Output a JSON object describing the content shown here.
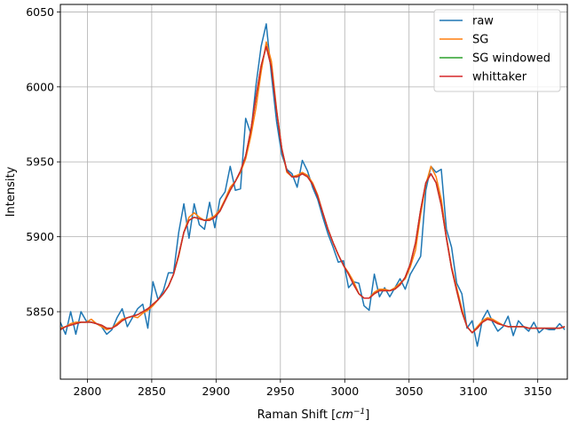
{
  "chart_data": {
    "type": "line",
    "xlabel": "Raman Shift [",
    "xlabel_unit": "cm",
    "xlabel_unit_exp": "−1",
    "xlabel_close": "]",
    "ylabel": "Intensity",
    "xlim": [
      2779,
      3173
    ],
    "ylim": [
      5805,
      6055
    ],
    "xticks": [
      2800,
      2850,
      2900,
      2950,
      3000,
      3050,
      3100,
      3150
    ],
    "yticks": [
      5850,
      5900,
      5950,
      6000,
      6050
    ],
    "grid": true,
    "legend_position": "top-right",
    "x": [
      2779,
      2783,
      2787,
      2791,
      2795,
      2799,
      2803,
      2807,
      2811,
      2815,
      2819,
      2823,
      2827,
      2831,
      2835,
      2839,
      2843,
      2847,
      2851,
      2855,
      2859,
      2863,
      2867,
      2871,
      2875,
      2879,
      2883,
      2887,
      2891,
      2895,
      2899,
      2903,
      2907,
      2911,
      2915,
      2919,
      2923,
      2927,
      2931,
      2935,
      2939,
      2943,
      2947,
      2951,
      2955,
      2959,
      2963,
      2967,
      2971,
      2975,
      2979,
      2983,
      2987,
      2991,
      2995,
      2999,
      3003,
      3007,
      3011,
      3015,
      3019,
      3023,
      3027,
      3031,
      3035,
      3039,
      3043,
      3047,
      3051,
      3055,
      3059,
      3063,
      3067,
      3071,
      3075,
      3079,
      3083,
      3087,
      3091,
      3095,
      3099,
      3103,
      3107,
      3111,
      3115,
      3119,
      3123,
      3127,
      3131,
      3135,
      3139,
      3143,
      3147,
      3151,
      3155,
      3159,
      3163,
      3167,
      3171
    ],
    "series": [
      {
        "name": "raw",
        "color": "#1f77b4",
        "values": [
          5843,
          5835,
          5850,
          5835,
          5850,
          5844,
          5843,
          5842,
          5840,
          5835,
          5838,
          5846,
          5852,
          5840,
          5846,
          5852,
          5855,
          5839,
          5870,
          5858,
          5864,
          5876,
          5876,
          5903,
          5922,
          5899,
          5922,
          5908,
          5905,
          5923,
          5906,
          5925,
          5930,
          5947,
          5931,
          5932,
          5979,
          5969,
          6001,
          6027,
          6042,
          6008,
          5977,
          5955,
          5945,
          5942,
          5933,
          5951,
          5944,
          5933,
          5925,
          5913,
          5902,
          5893,
          5883,
          5884,
          5866,
          5870,
          5869,
          5854,
          5851,
          5875,
          5860,
          5866,
          5860,
          5866,
          5872,
          5865,
          5875,
          5881,
          5887,
          5931,
          5947,
          5943,
          5945,
          5905,
          5893,
          5869,
          5862,
          5839,
          5844,
          5827,
          5845,
          5851,
          5843,
          5837,
          5840,
          5847,
          5834,
          5844,
          5840,
          5837,
          5843,
          5836,
          5839,
          5838,
          5838,
          5842,
          5838
        ]
      },
      {
        "name": "SG",
        "color": "#ff7f0e",
        "values": [
          5839,
          5840,
          5842,
          5843,
          5843,
          5843,
          5845,
          5842,
          5840,
          5838,
          5839,
          5842,
          5845,
          5846,
          5847,
          5846,
          5849,
          5851,
          5854,
          5858,
          5862,
          5867,
          5875,
          5887,
          5903,
          5913,
          5916,
          5913,
          5911,
          5912,
          5914,
          5918,
          5925,
          5933,
          5937,
          5943,
          5952,
          5967,
          5986,
          6010,
          6030,
          6017,
          5985,
          5959,
          5943,
          5940,
          5941,
          5943,
          5941,
          5936,
          5928,
          5916,
          5905,
          5896,
          5888,
          5881,
          5876,
          5870,
          5862,
          5859,
          5859,
          5863,
          5865,
          5865,
          5864,
          5866,
          5869,
          5872,
          5880,
          5891,
          5915,
          5935,
          5947,
          5940,
          5925,
          5900,
          5880,
          5866,
          5852,
          5840,
          5836,
          5840,
          5844,
          5846,
          5845,
          5843,
          5841,
          5840,
          5840,
          5840,
          5840,
          5839,
          5839,
          5839,
          5839,
          5839,
          5839,
          5839,
          5840
        ]
      },
      {
        "name": "SG windowed",
        "color": "#2ca02c",
        "values": [
          5838,
          5840,
          5841,
          5842,
          5843,
          5843,
          5843,
          5842,
          5841,
          5839,
          5839,
          5841,
          5844,
          5846,
          5847,
          5848,
          5850,
          5852,
          5855,
          5858,
          5862,
          5867,
          5875,
          5888,
          5903,
          5911,
          5913,
          5912,
          5911,
          5911,
          5913,
          5917,
          5924,
          5931,
          5937,
          5944,
          5954,
          5971,
          5993,
          6014,
          6027,
          6013,
          5984,
          5959,
          5944,
          5940,
          5940,
          5942,
          5940,
          5935,
          5927,
          5916,
          5905,
          5896,
          5888,
          5881,
          5875,
          5868,
          5862,
          5859,
          5859,
          5862,
          5864,
          5864,
          5864,
          5865,
          5868,
          5873,
          5882,
          5896,
          5918,
          5936,
          5942,
          5936,
          5921,
          5899,
          5879,
          5864,
          5850,
          5840,
          5836,
          5839,
          5843,
          5845,
          5844,
          5842,
          5841,
          5840,
          5840,
          5840,
          5840,
          5839,
          5839,
          5839,
          5839,
          5839,
          5839,
          5839,
          5840
        ]
      },
      {
        "name": "whittaker",
        "color": "#d62728",
        "values": [
          5838,
          5840,
          5841,
          5842,
          5843,
          5843,
          5843,
          5842,
          5841,
          5839,
          5839,
          5841,
          5844,
          5846,
          5847,
          5848,
          5850,
          5852,
          5855,
          5858,
          5862,
          5867,
          5875,
          5888,
          5903,
          5911,
          5913,
          5912,
          5911,
          5911,
          5913,
          5917,
          5924,
          5931,
          5937,
          5944,
          5954,
          5971,
          5993,
          6014,
          6027,
          6013,
          5984,
          5959,
          5944,
          5940,
          5940,
          5942,
          5940,
          5935,
          5927,
          5916,
          5905,
          5896,
          5888,
          5881,
          5875,
          5868,
          5862,
          5859,
          5859,
          5862,
          5864,
          5864,
          5864,
          5865,
          5868,
          5873,
          5882,
          5896,
          5918,
          5936,
          5942,
          5936,
          5921,
          5899,
          5879,
          5864,
          5850,
          5840,
          5836,
          5839,
          5843,
          5845,
          5844,
          5842,
          5841,
          5840,
          5840,
          5840,
          5840,
          5839,
          5839,
          5839,
          5839,
          5839,
          5839,
          5839,
          5840
        ]
      }
    ]
  }
}
